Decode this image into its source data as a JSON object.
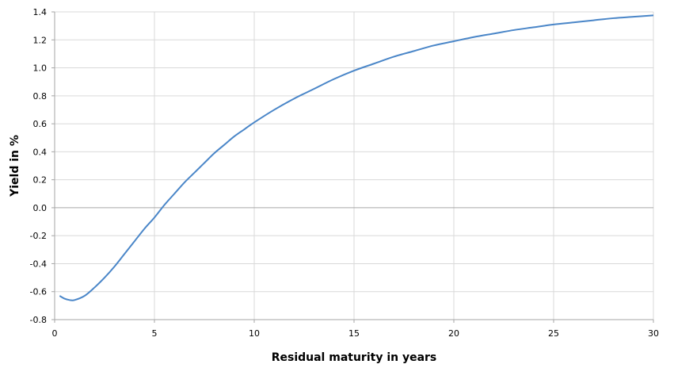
{
  "chart_data": {
    "type": "line",
    "title": "",
    "xlabel": "Residual maturity in years",
    "ylabel": "Yield in %",
    "xlim": [
      0,
      30
    ],
    "ylim": [
      -0.8,
      1.4
    ],
    "x_ticks": [
      "0",
      "5",
      "10",
      "15",
      "20",
      "25",
      "30"
    ],
    "y_ticks": [
      "1.4",
      "1.2",
      "1.0",
      "0.8",
      "0.6",
      "0.4",
      "0.2",
      "0.0",
      "-0.2",
      "-0.4",
      "-0.6",
      "-0.8"
    ],
    "grid": true,
    "legend": "none",
    "series": [
      {
        "color": "#4a86c8",
        "x": [
          0.25,
          0.5,
          0.75,
          1,
          1.5,
          2,
          2.5,
          3,
          3.5,
          4,
          4.5,
          5,
          5.5,
          6,
          6.5,
          7,
          7.5,
          8,
          8.5,
          9,
          9.5,
          10,
          11,
          12,
          13,
          14,
          15,
          16,
          17,
          18,
          19,
          20,
          21,
          22,
          23,
          24,
          25,
          26,
          27,
          28,
          29,
          30
        ],
        "y": [
          -0.63,
          -0.65,
          -0.66,
          -0.66,
          -0.63,
          -0.57,
          -0.5,
          -0.42,
          -0.33,
          -0.24,
          -0.15,
          -0.07,
          0.02,
          0.1,
          0.18,
          0.25,
          0.32,
          0.39,
          0.45,
          0.51,
          0.56,
          0.61,
          0.7,
          0.78,
          0.85,
          0.92,
          0.98,
          1.03,
          1.08,
          1.12,
          1.16,
          1.19,
          1.22,
          1.245,
          1.27,
          1.29,
          1.31,
          1.325,
          1.34,
          1.355,
          1.365,
          1.375
        ]
      }
    ],
    "colors": {
      "line": "#4a86c8",
      "grid": "#d9d9d9",
      "zero_line": "#a6a6a6",
      "axis": "#a6a6a6"
    }
  }
}
